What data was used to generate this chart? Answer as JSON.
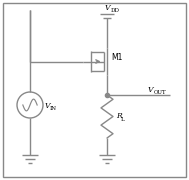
{
  "fig_width": 1.89,
  "fig_height": 1.8,
  "dpi": 100,
  "bg_color": "#ffffff",
  "border_color": "#888888",
  "line_color": "#888888",
  "line_width": 1.0,
  "text_color": "#000000",
  "vdd_label": "V",
  "vdd_sub": "DD",
  "vin_label": "V",
  "vin_sub": "IN",
  "vout_label": "V",
  "vout_sub": "OUT",
  "m1_label": "M1",
  "rl_label": "R",
  "rl_sub": "L"
}
